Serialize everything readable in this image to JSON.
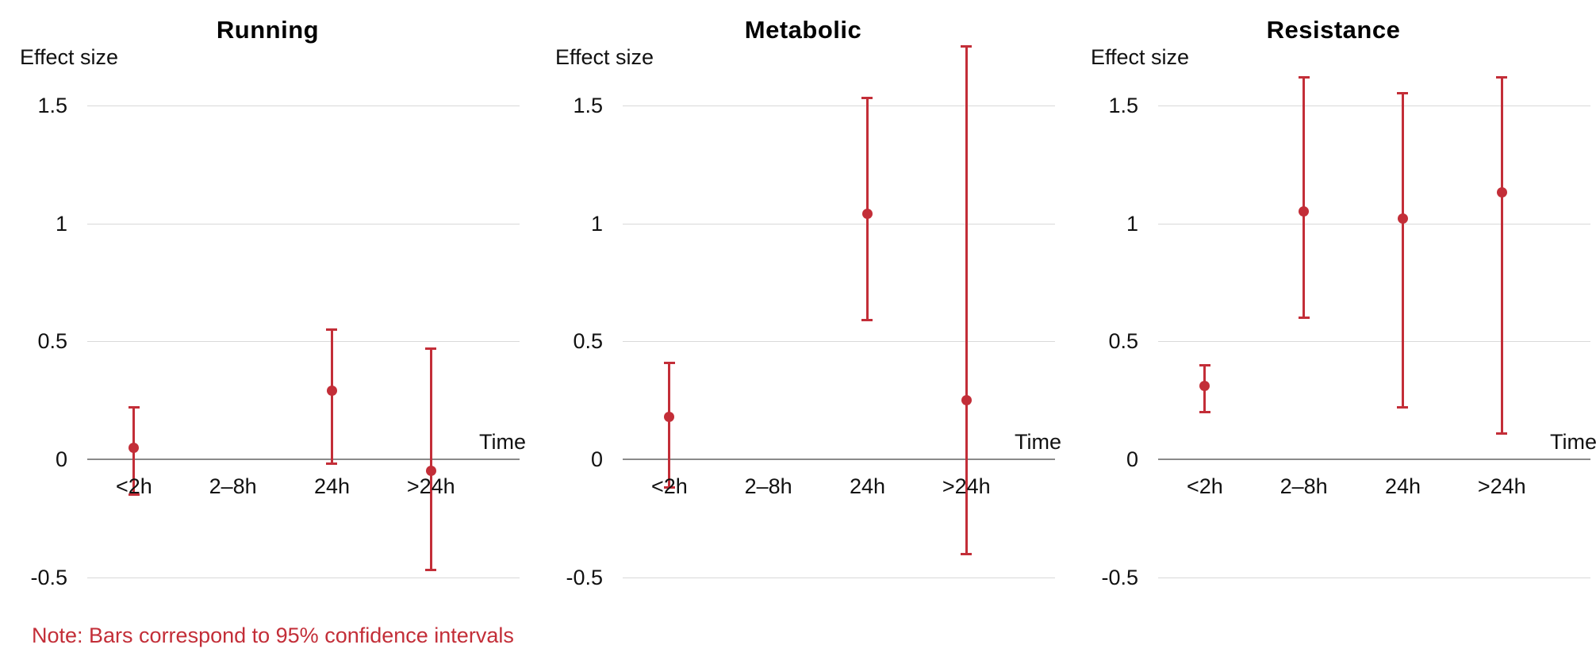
{
  "chart_data": {
    "type": "scatter",
    "variant": "point-estimate-with-error-bars",
    "figure_kind": "three-panel effect-size plot",
    "categories": [
      "<2h",
      "2–8h",
      "24h",
      ">24h"
    ],
    "xlabel": "Time",
    "ylabel": "Effect size",
    "yticks": [
      1.5,
      1,
      0.5,
      0,
      -0.5
    ],
    "ytick_labels": [
      "1.5",
      "1",
      "0.5",
      "0",
      "-0.5"
    ],
    "ylim": [
      -0.55,
      1.8
    ],
    "grid": "horizontal light gray lines, darker line at 0 (x-axis)",
    "legend": "none",
    "panels": [
      {
        "title": "Running",
        "points": [
          {
            "category": "<2h",
            "effect": 0.05,
            "ci_low": -0.15,
            "ci_high": 0.22
          },
          {
            "category": "2–8h",
            "effect": null,
            "ci_low": null,
            "ci_high": null
          },
          {
            "category": "24h",
            "effect": 0.29,
            "ci_low": -0.02,
            "ci_high": 0.55
          },
          {
            "category": ">24h",
            "effect": -0.05,
            "ci_low": -0.47,
            "ci_high": 0.47
          }
        ]
      },
      {
        "title": "Metabolic",
        "points": [
          {
            "category": "<2h",
            "effect": 0.18,
            "ci_low": -0.12,
            "ci_high": 0.41
          },
          {
            "category": "2–8h",
            "effect": null,
            "ci_low": null,
            "ci_high": null
          },
          {
            "category": "24h",
            "effect": 1.04,
            "ci_low": 0.59,
            "ci_high": 1.53
          },
          {
            "category": ">24h",
            "effect": 0.25,
            "ci_low": -0.4,
            "ci_high": 1.75
          }
        ]
      },
      {
        "title": "Resistance",
        "points": [
          {
            "category": "<2h",
            "effect": 0.31,
            "ci_low": 0.2,
            "ci_high": 0.4
          },
          {
            "category": "2–8h",
            "effect": 1.05,
            "ci_low": 0.6,
            "ci_high": 1.62
          },
          {
            "category": "24h",
            "effect": 1.02,
            "ci_low": 0.22,
            "ci_high": 1.55
          },
          {
            "category": ">24h",
            "effect": 1.13,
            "ci_low": 0.11,
            "ci_high": 1.62
          }
        ]
      }
    ],
    "note": "Note: Bars correspond to 95% confidence intervals",
    "colors": {
      "marker": "#c32e38",
      "note_text": "#c32e38",
      "gridline": "#d9d9d9",
      "axis_line": "#8a8a8a",
      "text": "#111111",
      "title": "#000000",
      "background": "#ffffff"
    }
  }
}
